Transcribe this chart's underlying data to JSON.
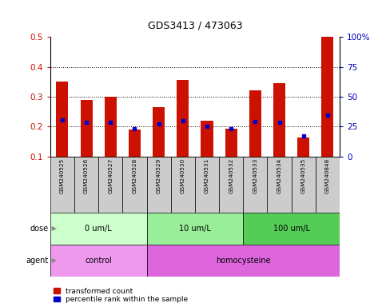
{
  "title": "GDS3413 / 473063",
  "samples": [
    "GSM240525",
    "GSM240526",
    "GSM240527",
    "GSM240528",
    "GSM240529",
    "GSM240530",
    "GSM240531",
    "GSM240532",
    "GSM240533",
    "GSM240534",
    "GSM240535",
    "GSM240848"
  ],
  "red_values": [
    0.35,
    0.29,
    0.3,
    0.19,
    0.265,
    0.355,
    0.22,
    0.193,
    0.32,
    0.345,
    0.165,
    0.5
  ],
  "blue_values": [
    0.222,
    0.215,
    0.215,
    0.193,
    0.21,
    0.22,
    0.2,
    0.193,
    0.218,
    0.215,
    0.168,
    0.238
  ],
  "ylim_left": [
    0.1,
    0.5
  ],
  "ylim_right": [
    0,
    100
  ],
  "yticks_left": [
    0.1,
    0.2,
    0.3,
    0.4,
    0.5
  ],
  "yticks_right": [
    0,
    25,
    50,
    75,
    100
  ],
  "ytick_labels_right": [
    "0",
    "25",
    "50",
    "75",
    "100%"
  ],
  "dose_groups": [
    {
      "label": "0 um/L",
      "start": 0,
      "end": 3,
      "color": "#ccffcc"
    },
    {
      "label": "10 um/L",
      "start": 4,
      "end": 7,
      "color": "#99ee99"
    },
    {
      "label": "100 um/L",
      "start": 8,
      "end": 11,
      "color": "#55cc55"
    }
  ],
  "agent_groups": [
    {
      "label": "control",
      "start": 0,
      "end": 3,
      "color": "#ee99ee"
    },
    {
      "label": "homocysteine",
      "start": 4,
      "end": 11,
      "color": "#dd66dd"
    }
  ],
  "bar_color": "#cc1100",
  "blue_color": "#0000cc",
  "bg_color": "#ffffff",
  "label_color_left": "#cc1100",
  "label_color_right": "#0000bb",
  "sample_bg": "#cccccc",
  "legend_items": [
    "transformed count",
    "percentile rank within the sample"
  ]
}
